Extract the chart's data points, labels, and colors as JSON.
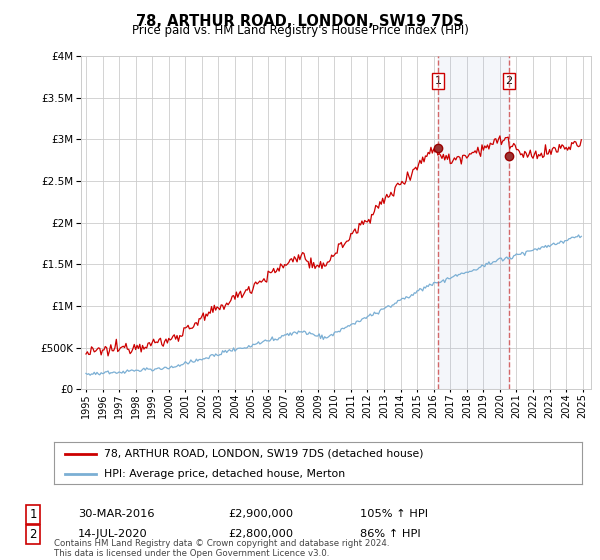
{
  "title": "78, ARTHUR ROAD, LONDON, SW19 7DS",
  "subtitle": "Price paid vs. HM Land Registry's House Price Index (HPI)",
  "ylim": [
    0,
    4000000
  ],
  "yticks": [
    0,
    500000,
    1000000,
    1500000,
    2000000,
    2500000,
    3000000,
    3500000,
    4000000
  ],
  "xlim_start": 1994.7,
  "xlim_end": 2025.5,
  "red_line_color": "#cc0000",
  "blue_line_color": "#7bafd4",
  "marker1_x": 2016.25,
  "marker1_y": 2900000,
  "marker2_x": 2020.55,
  "marker2_y": 2800000,
  "vline1_x": 2016.25,
  "vline2_x": 2020.55,
  "legend_label_red": "78, ARTHUR ROAD, LONDON, SW19 7DS (detached house)",
  "legend_label_blue": "HPI: Average price, detached house, Merton",
  "table_row1": [
    "1",
    "30-MAR-2016",
    "£2,900,000",
    "105% ↑ HPI"
  ],
  "table_row2": [
    "2",
    "14-JUL-2020",
    "£2,800,000",
    "86% ↑ HPI"
  ],
  "footer": "Contains HM Land Registry data © Crown copyright and database right 2024.\nThis data is licensed under the Open Government Licence v3.0.",
  "background_color": "#ffffff",
  "grid_color": "#cccccc",
  "red_seed": 12345,
  "blue_seed": 67890
}
